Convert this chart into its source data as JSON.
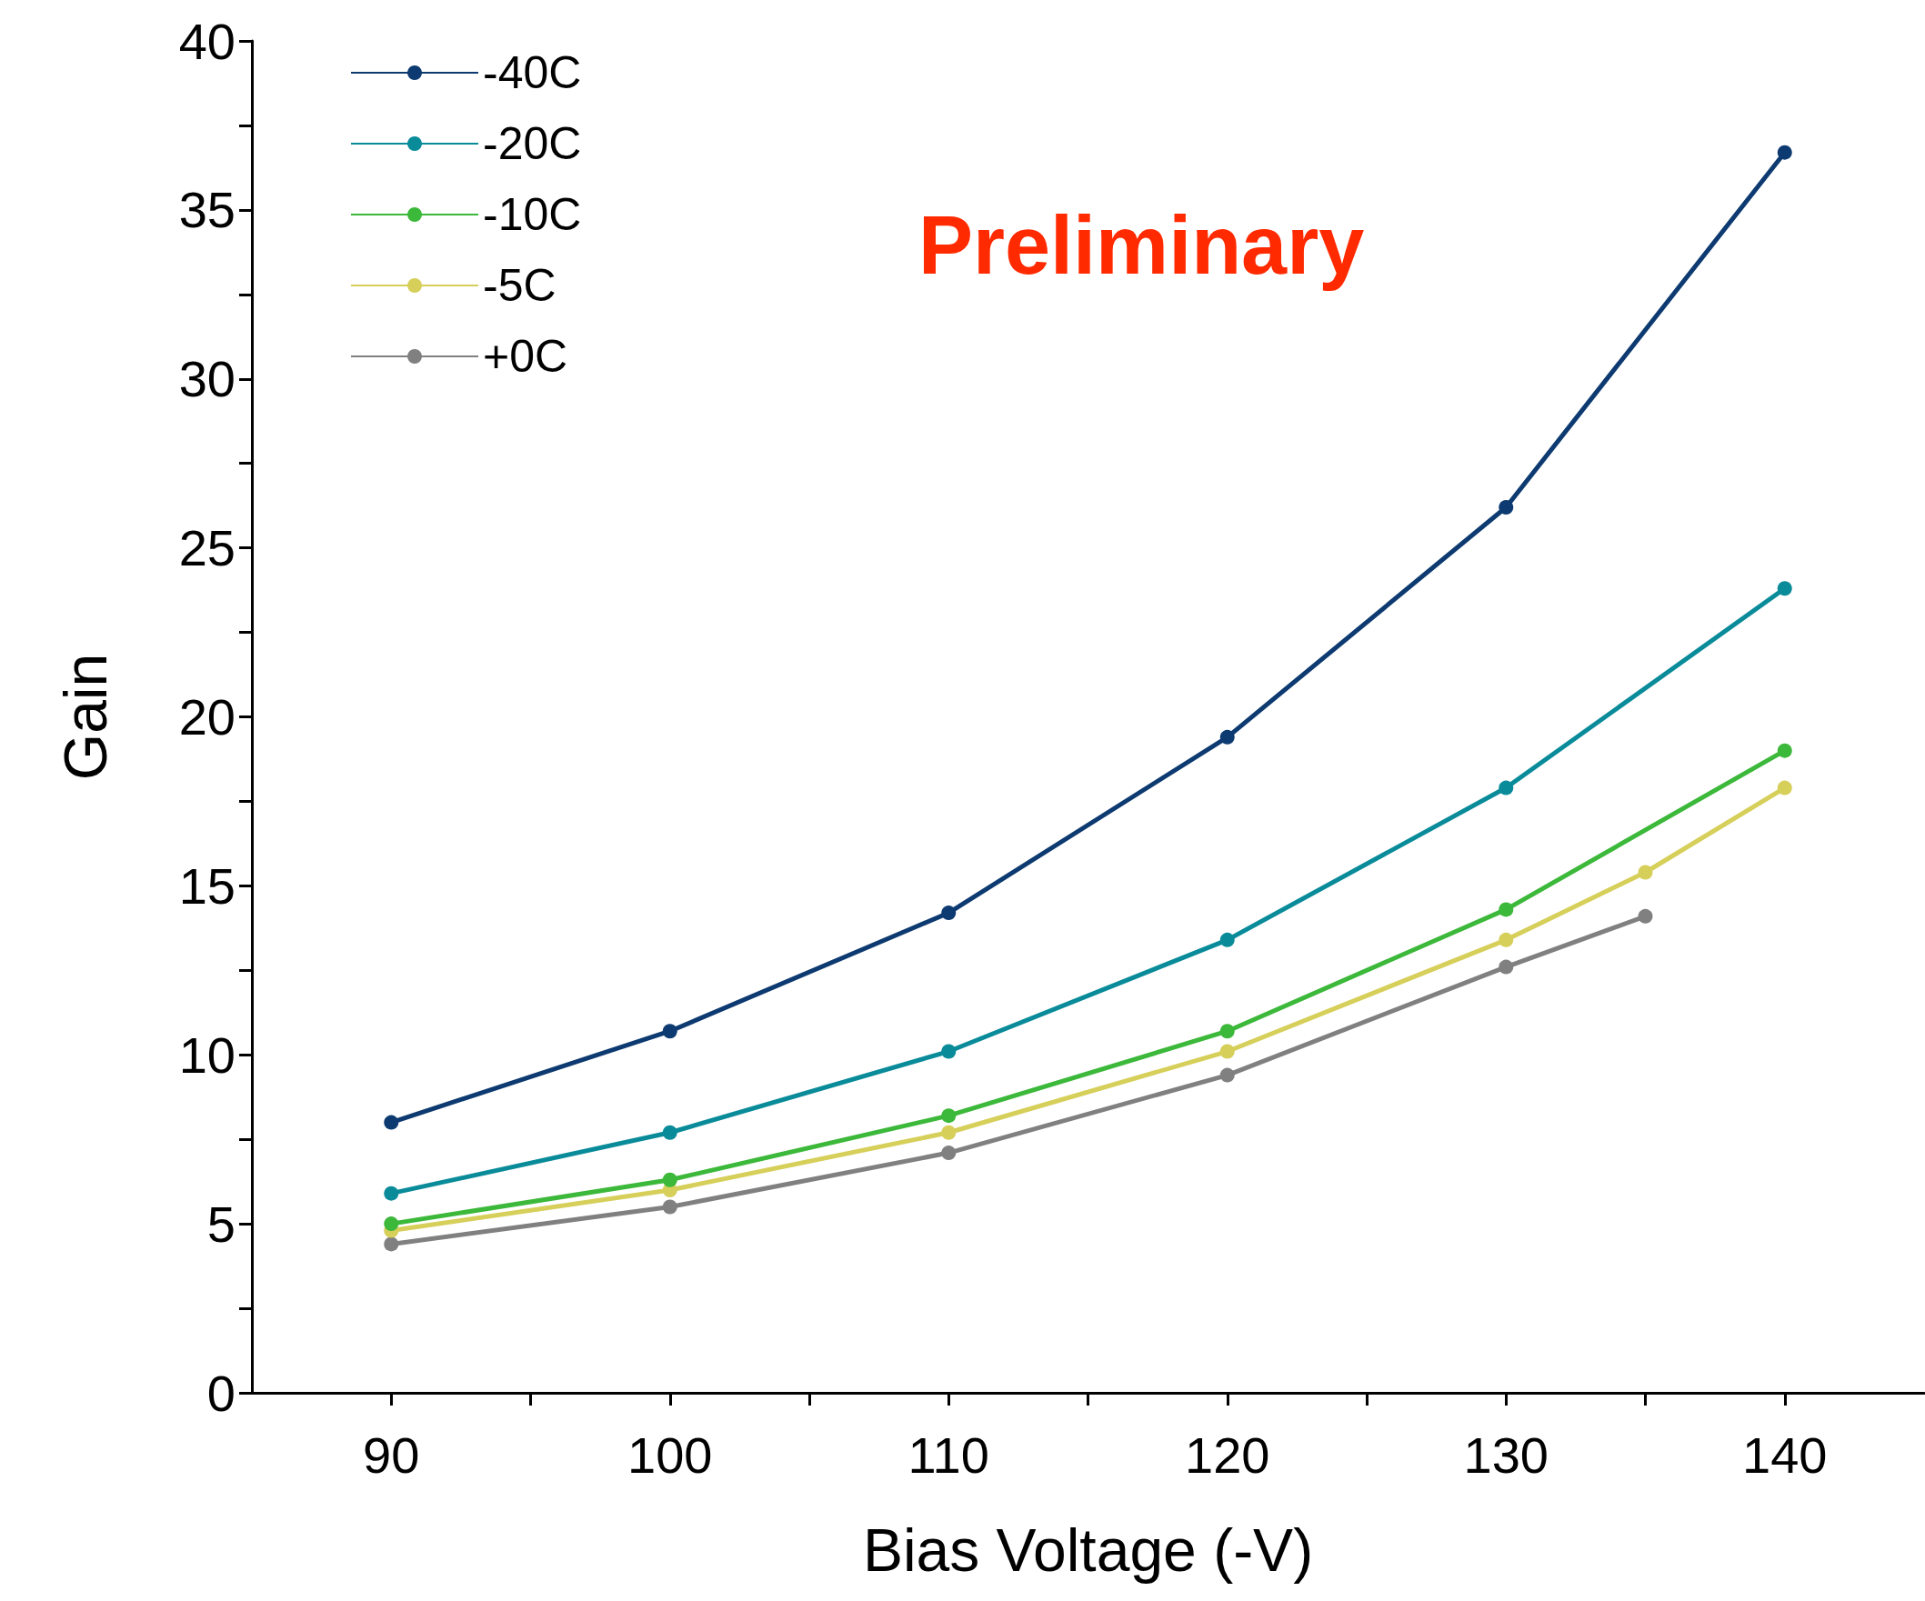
{
  "chart_data": {
    "type": "line",
    "xlabel": "Bias Voltage (-V)",
    "ylabel": "Gain",
    "annotations": [
      "Preliminary"
    ],
    "xlim": [
      85,
      145
    ],
    "xticks": [
      90,
      {
        "value": 95,
        "label": null
      },
      100,
      {
        "value": 105,
        "label": null
      },
      110,
      {
        "value": 115,
        "label": null
      },
      120,
      {
        "value": 125,
        "label": null
      },
      130,
      {
        "value": 135,
        "label": null
      },
      140
    ],
    "ylim": [
      0,
      40
    ],
    "yticks": [
      0,
      {
        "value": 2.5,
        "label": null
      },
      5,
      {
        "value": 7.5,
        "label": null
      },
      10,
      {
        "value": 12.5,
        "label": null
      },
      15,
      {
        "value": 17.5,
        "label": null
      },
      20,
      {
        "value": 22.5,
        "label": null
      },
      25,
      {
        "value": 27.5,
        "label": null
      },
      30,
      {
        "value": 32.5,
        "label": null
      },
      35,
      {
        "value": 37.5,
        "label": null
      },
      40
    ],
    "grid": false,
    "legend": "top left",
    "marker": "circle",
    "line_style": "solid",
    "x": [
      90,
      100,
      110,
      120,
      130,
      140
    ],
    "series": [
      {
        "name": "-40C",
        "color": "#0d3a70",
        "values": [
          8.0,
          10.7,
          14.2,
          19.4,
          26.2,
          36.7
        ]
      },
      {
        "name": "-20C",
        "color": "#0a8b9a",
        "values": [
          5.9,
          7.7,
          10.1,
          13.4,
          17.9,
          23.8
        ]
      },
      {
        "name": "-10C",
        "color": "#3cb83a",
        "values": [
          5.0,
          6.3,
          8.2,
          10.7,
          14.3,
          19.0
        ]
      },
      {
        "name": "-5C",
        "color": "#d6cf5a",
        "x": [
          90,
          100,
          110,
          120,
          130,
          135,
          140
        ],
        "values": [
          4.8,
          6.0,
          7.7,
          10.1,
          13.4,
          15.4,
          17.9
        ]
      },
      {
        "name": "+0C",
        "color": "#808080",
        "x": [
          90,
          100,
          110,
          120,
          130,
          135
        ],
        "values": [
          4.4,
          5.5,
          7.1,
          9.4,
          12.6,
          14.1
        ]
      }
    ]
  }
}
